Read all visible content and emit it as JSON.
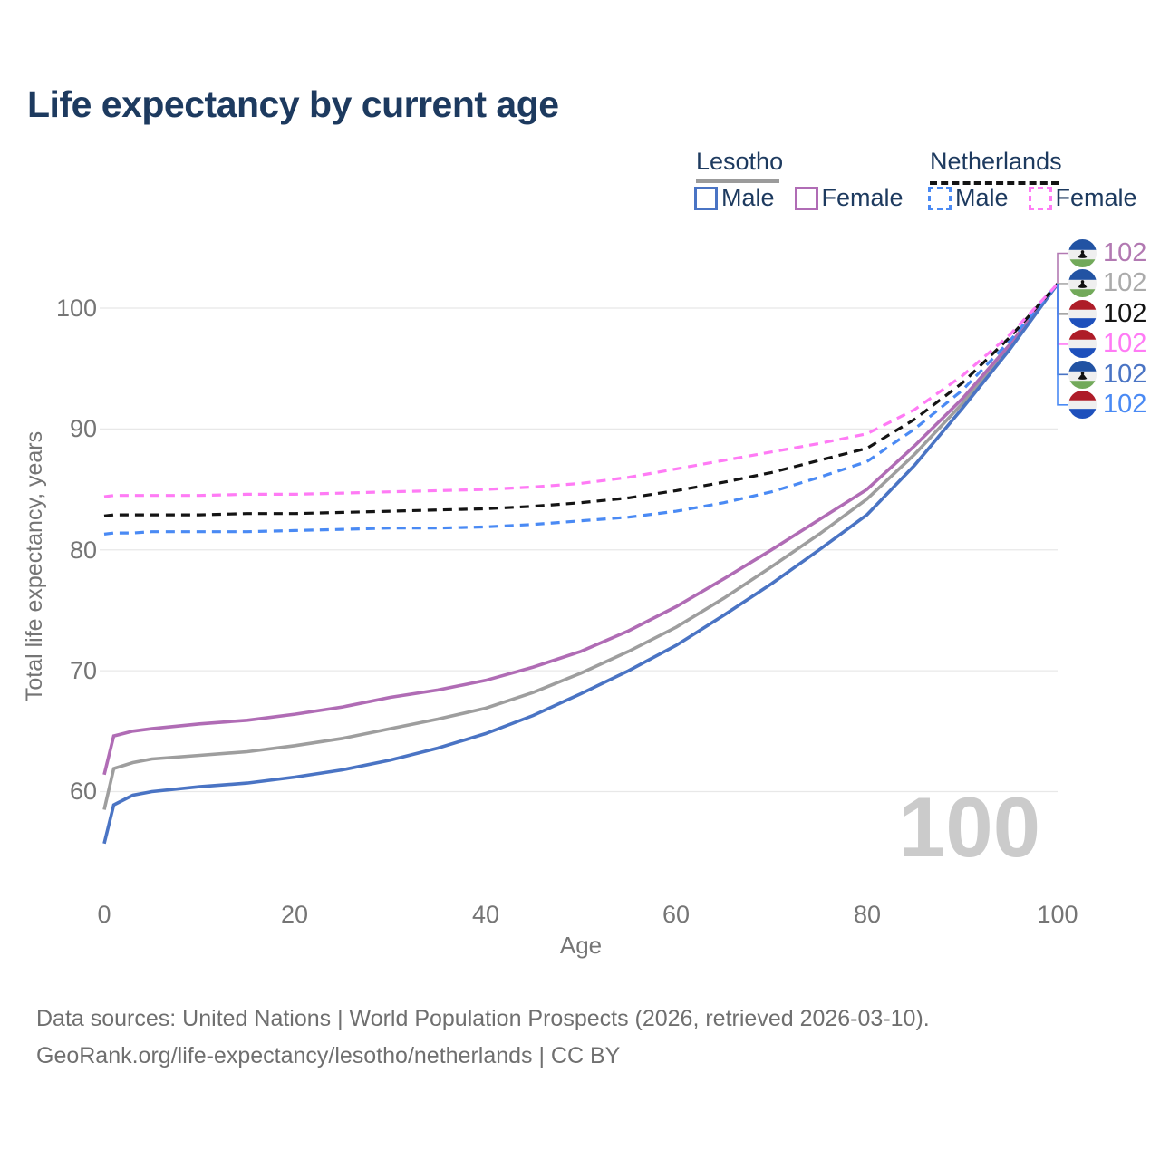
{
  "title": "Life expectancy by current age",
  "legend": {
    "groups": [
      {
        "label": "Lesotho",
        "line_style": "solid",
        "underline_color": "#9b9b9b",
        "items": [
          {
            "label": "Male",
            "color": "#4a74c4"
          },
          {
            "label": "Female",
            "color": "#b06cb5"
          }
        ]
      },
      {
        "label": "Netherlands",
        "line_style": "dashed",
        "underline_color": "#141414",
        "items": [
          {
            "label": "Male",
            "color": "#4a8af4"
          },
          {
            "label": "Female",
            "color": "#ff7bf5"
          }
        ]
      }
    ]
  },
  "axes": {
    "y_title": "Total life expectancy, years",
    "y_ticks": [
      "100",
      "90",
      "80",
      "70",
      "60"
    ],
    "x_ticks": [
      "0",
      "20",
      "40",
      "60",
      "80",
      "100"
    ],
    "x_title": "Age"
  },
  "end_labels": [
    {
      "series": "lesotho_female",
      "flag": "lesotho",
      "value": "102",
      "color": "#b279b2"
    },
    {
      "series": "lesotho_both",
      "flag": "lesotho",
      "value": "102",
      "color": "#ababab"
    },
    {
      "series": "netherlands_both",
      "flag": "netherlands",
      "value": "102",
      "color": "#141414"
    },
    {
      "series": "netherlands_female",
      "flag": "netherlands",
      "value": "102",
      "color": "#ff7bf5"
    },
    {
      "series": "lesotho_male",
      "flag": "lesotho",
      "value": "102",
      "color": "#4a74c4"
    },
    {
      "series": "netherlands_male",
      "flag": "netherlands",
      "value": "102",
      "color": "#4a8af4"
    }
  ],
  "watermark": "100",
  "footer": {
    "line1": "Data sources: United Nations | World Population Prospects (2026, retrieved 2026-03-10).",
    "line2": "GeoRank.org/life-expectancy/lesotho/netherlands | CC BY"
  },
  "chart_data": {
    "type": "line",
    "title": "Life expectancy by current age",
    "xlabel": "Age",
    "ylabel": "Total life expectancy, years",
    "xlim": [
      0,
      100
    ],
    "ylim": [
      55,
      104
    ],
    "grid": "horizontal",
    "yticks": [
      100,
      90,
      80,
      70,
      60
    ],
    "xticks": [
      0,
      20,
      40,
      60,
      80,
      100
    ],
    "legend_position": "top-right",
    "x": [
      0,
      1,
      3,
      5,
      10,
      15,
      20,
      25,
      30,
      35,
      40,
      45,
      50,
      55,
      60,
      65,
      70,
      75,
      80,
      85,
      90,
      95,
      100
    ],
    "series": [
      {
        "id": "lesotho_both",
        "name": "Lesotho Both sexes",
        "country": "Lesotho",
        "sex": "Both",
        "dashed": false,
        "color": "#9e9e9e",
        "values": [
          58.5,
          61.9,
          62.4,
          62.7,
          63.0,
          63.3,
          63.8,
          64.4,
          65.2,
          66.0,
          66.9,
          68.2,
          69.8,
          71.6,
          73.6,
          76.0,
          78.6,
          81.3,
          84.2,
          87.9,
          92.1,
          96.8,
          102
        ]
      },
      {
        "id": "lesotho_female",
        "name": "Lesotho Female",
        "country": "Lesotho",
        "sex": "Female",
        "dashed": false,
        "color": "#b06cb5",
        "values": [
          61.4,
          64.6,
          65.0,
          65.2,
          65.6,
          65.9,
          66.4,
          67.0,
          67.8,
          68.4,
          69.2,
          70.3,
          71.6,
          73.3,
          75.3,
          77.6,
          80.0,
          82.5,
          85.0,
          88.6,
          92.5,
          97.0,
          102
        ]
      },
      {
        "id": "lesotho_male",
        "name": "Lesotho Male",
        "country": "Lesotho",
        "sex": "Male",
        "dashed": false,
        "color": "#4a74c4",
        "values": [
          55.7,
          58.9,
          59.7,
          60.0,
          60.4,
          60.7,
          61.2,
          61.8,
          62.6,
          63.6,
          64.8,
          66.3,
          68.1,
          70.0,
          72.1,
          74.6,
          77.2,
          80.0,
          82.9,
          87.0,
          91.7,
          96.6,
          102
        ]
      },
      {
        "id": "netherlands_male",
        "name": "Netherlands Male",
        "country": "Netherlands",
        "sex": "Male",
        "dashed": true,
        "color": "#4a8af4",
        "values": [
          81.3,
          81.4,
          81.4,
          81.5,
          81.5,
          81.5,
          81.6,
          81.7,
          81.8,
          81.8,
          81.9,
          82.1,
          82.4,
          82.7,
          83.2,
          83.9,
          84.8,
          86.0,
          87.3,
          90.0,
          93.2,
          97.3,
          102
        ]
      },
      {
        "id": "netherlands_both",
        "name": "Netherlands Both sexes",
        "country": "Netherlands",
        "sex": "Both",
        "dashed": true,
        "color": "#141414",
        "values": [
          82.8,
          82.9,
          82.9,
          82.9,
          82.9,
          83.0,
          83.0,
          83.1,
          83.2,
          83.3,
          83.4,
          83.6,
          83.9,
          84.3,
          84.9,
          85.6,
          86.4,
          87.4,
          88.4,
          90.8,
          93.8,
          97.6,
          102
        ]
      },
      {
        "id": "netherlands_female",
        "name": "Netherlands Female",
        "country": "Netherlands",
        "sex": "Female",
        "dashed": true,
        "color": "#ff7bf5",
        "values": [
          84.4,
          84.5,
          84.5,
          84.5,
          84.5,
          84.6,
          84.6,
          84.7,
          84.8,
          84.9,
          85.0,
          85.2,
          85.5,
          86.0,
          86.7,
          87.4,
          88.1,
          88.8,
          89.6,
          91.6,
          94.4,
          97.8,
          102
        ]
      }
    ]
  }
}
